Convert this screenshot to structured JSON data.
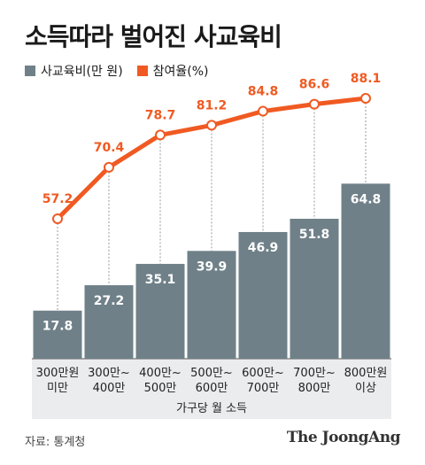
{
  "title": "소득따라 벌어진 사교육비",
  "source": "자료: 통계청",
  "brand": "The JoongAng",
  "colors": {
    "bar": "#6f8088",
    "line": "#f05a22",
    "axis_band": "#ebecee",
    "connector": "#999999"
  },
  "chart_data": {
    "type": "bar",
    "categories": [
      [
        "300만원",
        "미만"
      ],
      [
        "300만~",
        "400만"
      ],
      [
        "400만~",
        "500만"
      ],
      [
        "500만~",
        "600만"
      ],
      [
        "600만~",
        "700만"
      ],
      [
        "700만~",
        "800만"
      ],
      [
        "800만원",
        "이상"
      ]
    ],
    "xlabel": "가구당 월 소득",
    "series": [
      {
        "name": "사교육비(만 원)",
        "kind": "bar",
        "values": [
          17.8,
          27.2,
          35.1,
          39.9,
          46.9,
          51.8,
          64.8
        ]
      },
      {
        "name": "참여율(%)",
        "kind": "line",
        "values": [
          57.2,
          70.4,
          78.7,
          81.2,
          84.8,
          86.6,
          88.1
        ]
      }
    ],
    "legend_position": "top-left",
    "grid": false
  }
}
